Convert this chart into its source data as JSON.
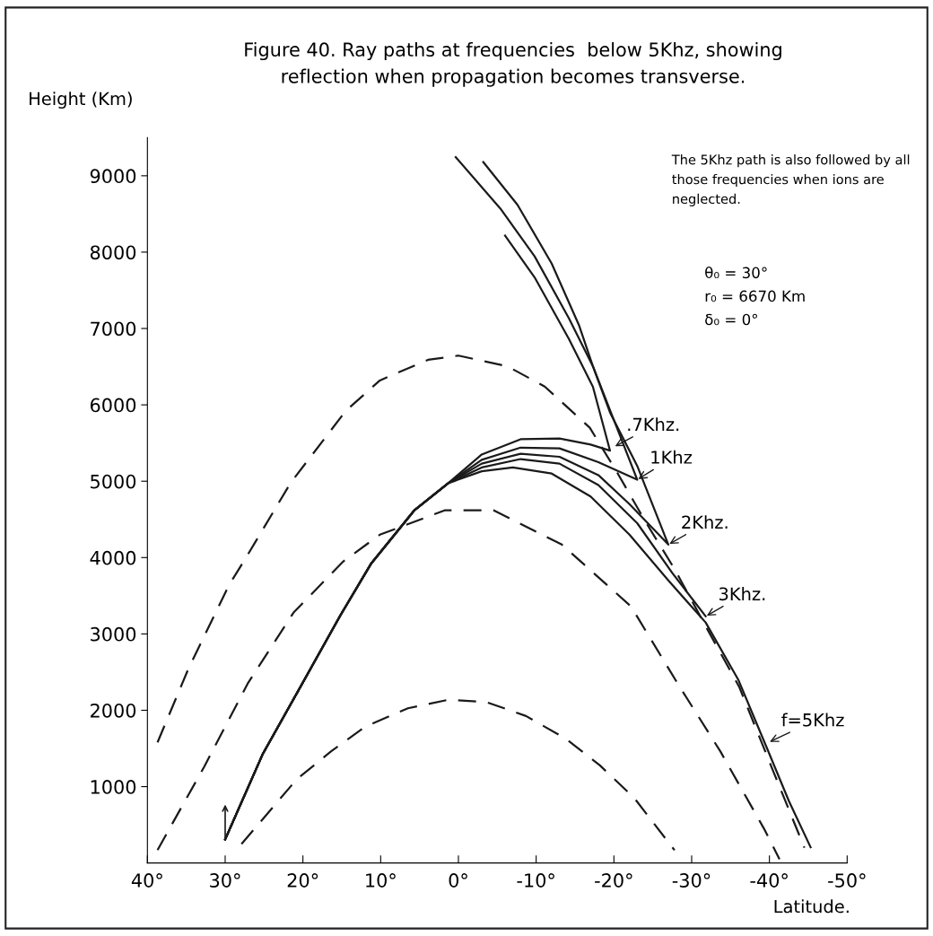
{
  "chart_data": {
    "type": "line",
    "title": "Figure 40. Ray paths at frequencies  below 5Khz, showing\nreflection when propagation becomes transverse.",
    "xlabel": "Latitude.",
    "ylabel": "Height (Km)",
    "xlim": [
      40,
      -50
    ],
    "ylim": [
      0,
      9500
    ],
    "xticks": [
      {
        "value": 40,
        "label": "40°"
      },
      {
        "value": 30,
        "label": "30°"
      },
      {
        "value": 20,
        "label": "20°"
      },
      {
        "value": 10,
        "label": "10°"
      },
      {
        "value": 0,
        "label": "0°"
      },
      {
        "value": -10,
        "label": "-10°"
      },
      {
        "value": -20,
        "label": "-20°"
      },
      {
        "value": -30,
        "label": "-30°"
      },
      {
        "value": -40,
        "label": "-40°"
      },
      {
        "value": -50,
        "label": "-50°"
      }
    ],
    "yticks": [
      1000,
      2000,
      3000,
      4000,
      5000,
      6000,
      7000,
      8000,
      9000
    ],
    "grid": false,
    "marker": "none",
    "series": [
      {
        "color": "#1a1a1a",
        "line_style": "solid",
        "x": [
          30,
          25.2,
          19.2,
          15.2,
          11.2,
          5.7,
          1.3,
          -3,
          -7,
          -12,
          -17,
          -22,
          -27,
          -31.8,
          -36,
          -39.7,
          -42.5,
          -45.3
        ],
        "values": [
          309,
          1420,
          2510,
          3240,
          3925,
          4615,
          4975,
          5130,
          5180,
          5100,
          4800,
          4300,
          3700,
          3150,
          2400,
          1500,
          813,
          206
        ]
      },
      {
        "color": "#1a1a1a",
        "line_style": "solid",
        "x": [
          30,
          25.2,
          19.2,
          15.2,
          11.2,
          5.7,
          1.3,
          -3,
          -8,
          -13,
          -18,
          -23,
          -27.5,
          -31.8
        ],
        "values": [
          309,
          1420,
          2510,
          3240,
          3925,
          4615,
          4975,
          5180,
          5290,
          5230,
          4950,
          4450,
          3800,
          3230
        ]
      },
      {
        "color": "#1a1a1a",
        "line_style": "solid",
        "x": [
          30,
          25.2,
          19.2,
          15.2,
          11.2,
          5.7,
          1.3,
          -3,
          -8,
          -13,
          -18,
          -22,
          -27,
          -23,
          -19.5,
          -17.3,
          -14.2,
          -9.8,
          -5.4,
          0.35
        ],
        "values": [
          309,
          1420,
          2510,
          3240,
          3925,
          4615,
          4975,
          5230,
          5360,
          5320,
          5080,
          4700,
          4170,
          5200,
          5900,
          6505,
          7135,
          7945,
          8570,
          9244
        ]
      },
      {
        "color": "#1a1a1a",
        "line_style": "solid",
        "x": [
          30,
          25.2,
          19.2,
          15.2,
          11.2,
          5.7,
          1.3,
          -3,
          -8,
          -13,
          -18,
          -23,
          -20,
          -17.3,
          -15.5,
          -12,
          -7.6,
          -3.2
        ],
        "values": [
          309,
          1420,
          2510,
          3240,
          3925,
          4615,
          4975,
          5280,
          5440,
          5430,
          5250,
          5020,
          5800,
          6505,
          7045,
          7850,
          8620,
          9180
        ]
      },
      {
        "color": "#1a1a1a",
        "line_style": "solid",
        "x": [
          30,
          25.2,
          19.2,
          15.2,
          11.2,
          5.7,
          1.3,
          -3,
          -8,
          -13,
          -17,
          -19.5,
          -17.3,
          -14.2,
          -9.8,
          -6.0
        ],
        "values": [
          309,
          1420,
          2510,
          3240,
          3925,
          4615,
          4975,
          5350,
          5550,
          5560,
          5480,
          5400,
          6237,
          6865,
          7670,
          8216
        ]
      },
      {
        "color": "#1a1a1a",
        "line_style": "dashed",
        "x": [
          38.7,
          34.7,
          29.5,
          27.4,
          21.6,
          14.5,
          10.1,
          3.9,
          0,
          -6.3,
          -11.1,
          -16.9,
          -20.5,
          -24,
          -27.8,
          -31.7,
          -36.1,
          -40.5,
          -44.5
        ],
        "values": [
          1580,
          2550,
          3640,
          3985,
          4975,
          5920,
          6320,
          6590,
          6645,
          6505,
          6240,
          5700,
          5100,
          4480,
          3850,
          3120,
          2310,
          1200,
          200
        ]
      },
      {
        "color": "#1a1a1a",
        "line_style": "dashed",
        "x": [
          38.7,
          32.7,
          27.1,
          21.2,
          14.8,
          10.1,
          1.7,
          -4.5,
          -13.3,
          -22.2,
          -28.2,
          -33.7,
          -39.3,
          -41.3
        ],
        "values": [
          170,
          1260,
          2350,
          3280,
          3950,
          4300,
          4620,
          4620,
          4170,
          3360,
          2350,
          1460,
          450,
          50
        ]
      },
      {
        "color": "#1a1a1a",
        "line_style": "dashed",
        "x": [
          27.9,
          20.8,
          16.4,
          12.0,
          6.5,
          1.3,
          -3.6,
          -8.7,
          -13.9,
          -18.2,
          -22.6,
          -27.8
        ],
        "values": [
          248,
          1096,
          1460,
          1784,
          2026,
          2138,
          2107,
          1925,
          1622,
          1278,
          853,
          167
        ]
      }
    ],
    "annotations": [
      {
        "text": ".7Khz.",
        "x": -20,
        "y": 5450
      },
      {
        "text": "1Khz",
        "x": -23,
        "y": 5020
      },
      {
        "text": "2Khz.",
        "x": -27,
        "y": 4170
      },
      {
        "text": "3Khz.",
        "x": -31.8,
        "y": 3230
      },
      {
        "text": "f=5Khz",
        "x": -39.9,
        "y": 1580
      },
      "The 5Khz path is also followed by all those frequencies when ions are neglected.",
      "θ₀ = 30°",
      "r₀ = 6670 Km",
      "δ₀ = 0°"
    ]
  }
}
